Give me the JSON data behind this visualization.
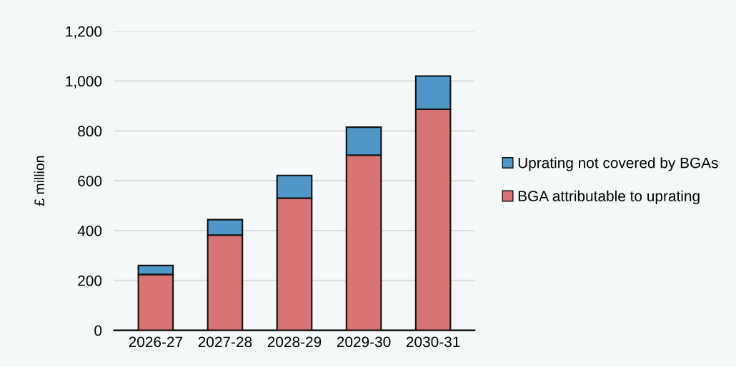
{
  "chart_data": {
    "type": "bar",
    "stacked": true,
    "ylabel": "£ million",
    "categories": [
      "2026-27",
      "2027-28",
      "2028-29",
      "2029-30",
      "2030-31"
    ],
    "series": [
      {
        "name": "BGA attributable to uprating",
        "color": "#d87474",
        "values": [
          224,
          382,
          530,
          703,
          887
        ]
      },
      {
        "name": "Uprating not covered by BGAs",
        "color": "#4f97c8",
        "values": [
          36,
          62,
          91,
          112,
          133
        ]
      }
    ],
    "ylim": [
      0,
      1200
    ],
    "yticks": [
      0,
      {
        "value": 200,
        "label": "200"
      },
      {
        "value": 400,
        "label": "400"
      },
      {
        "value": 600,
        "label": "600"
      },
      {
        "value": 800,
        "label": "800"
      },
      {
        "value": 1000,
        "label": "1,000"
      },
      {
        "value": 1200,
        "label": "1,200"
      }
    ],
    "grid": "y",
    "legend": "right"
  }
}
